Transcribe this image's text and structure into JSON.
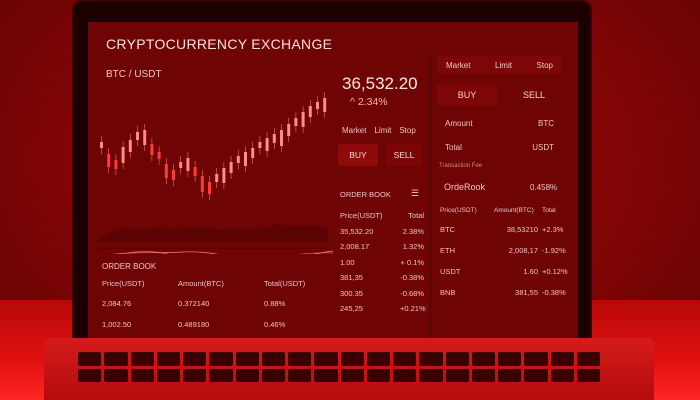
{
  "header": {
    "title": "CRYPTOCURRENCY EXCHANGE"
  },
  "chart_panel": {
    "pair": "BTC / USDT",
    "price": "36,532.20",
    "change": "^ 2.34%"
  },
  "order_tabs": [
    "Market",
    "Limit",
    "Stop"
  ],
  "buy_label": "BUY",
  "sell_label": "SELL",
  "order_book": {
    "title": "ORDER BOOK",
    "headers": [
      "Price(USDT)",
      "Total"
    ],
    "rows": [
      [
        "35,532.20",
        "2.38%"
      ],
      [
        "2,008.17",
        "1.32%"
      ],
      [
        "1.00",
        "+ 0.1%"
      ],
      [
        "381,35",
        "-0.38%"
      ],
      [
        "300.35",
        "-0.68%"
      ],
      [
        "245,25",
        "+0.21%"
      ]
    ]
  },
  "bottom_order_book": {
    "title": "ORDER BOOK",
    "headers": [
      "Price(USDT)",
      "Amount(BTC)",
      "Total(USDT)"
    ],
    "rows": [
      [
        "2,084.76",
        "0.372140",
        "0.88%"
      ],
      [
        "1,002.50",
        "0.489180",
        "0.46%"
      ]
    ]
  },
  "right_panel": {
    "tabs": [
      "Market",
      "Limit",
      "Stop"
    ],
    "buy": "BUY",
    "sell": "SELL",
    "amount_label": "Amount",
    "amount_unit": "BTC",
    "total_label": "Total",
    "total_unit": "USDT",
    "transaction_label": "Transaction Fee",
    "orderbook_label": "OrdeRook",
    "orderbook_value": "0.458%",
    "table_headers": [
      "Price(USDT)",
      "Amount(BTC)",
      "Total"
    ],
    "rows": [
      [
        "BTC",
        "38,53210",
        "+2.3%"
      ],
      [
        "ETH",
        "2,008,17",
        "-1.92%"
      ],
      [
        "USDT",
        "1.60",
        "+0.12%"
      ],
      [
        "BNB",
        "381,55",
        "-0.38%"
      ]
    ]
  },
  "colors": {
    "accent": "#e01111",
    "screen": "#6e0404",
    "text": "#f3c4c4"
  }
}
